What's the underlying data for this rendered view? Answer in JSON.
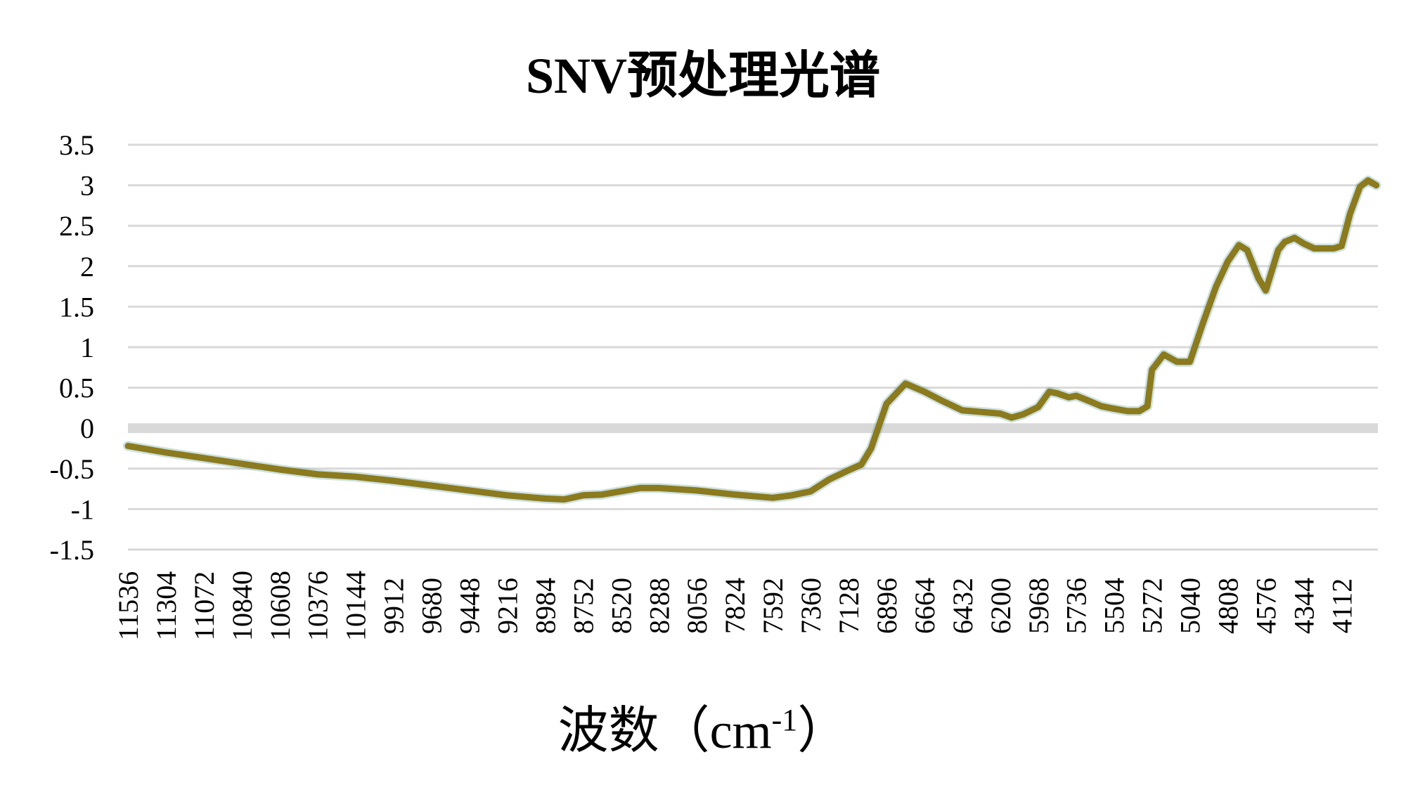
{
  "chart_data": {
    "type": "line",
    "title": "SNV预处理光谱",
    "xlabel_main": "波数（cm",
    "xlabel_sup": "-1",
    "xlabel_end": "）",
    "ylabel": "",
    "ylim": [
      -1.5,
      3.5
    ],
    "y_ticks": [
      "3.5",
      "3",
      "2.5",
      "2",
      "1.5",
      "1",
      "0.5",
      "0",
      "-0.5",
      "-1",
      "-1.5"
    ],
    "x_ticks": [
      "11536",
      "11304",
      "11072",
      "10840",
      "10608",
      "10376",
      "10144",
      "9912",
      "9680",
      "9448",
      "9216",
      "8984",
      "8752",
      "8520",
      "8288",
      "8056",
      "7824",
      "7592",
      "7360",
      "7128",
      "6896",
      "6664",
      "6432",
      "6200",
      "5968",
      "5736",
      "5504",
      "5272",
      "5040",
      "4808",
      "4576",
      "4344",
      "4112"
    ],
    "x_reversed": true,
    "xlim": [
      11536,
      3890
    ],
    "grid": true,
    "zero_line": true,
    "series": [
      {
        "color": "#8B7A1E",
        "x": [
          11536,
          11304,
          11072,
          10840,
          10608,
          10376,
          10144,
          9912,
          9680,
          9448,
          9216,
          8984,
          8868,
          8752,
          8636,
          8520,
          8404,
          8288,
          8056,
          7824,
          7592,
          7476,
          7360,
          7244,
          7170,
          7128,
          7050,
          6990,
          6896,
          6780,
          6664,
          6548,
          6432,
          6316,
          6200,
          6130,
          6060,
          5968,
          5900,
          5850,
          5780,
          5736,
          5650,
          5580,
          5504,
          5420,
          5350,
          5300,
          5272,
          5200,
          5120,
          5040,
          4960,
          4880,
          4808,
          4740,
          4690,
          4620,
          4576,
          4500,
          4460,
          4400,
          4344,
          4280,
          4230,
          4160,
          4112,
          4060,
          4000,
          3950,
          3900
        ],
        "y": [
          -0.22,
          -0.3,
          -0.37,
          -0.44,
          -0.51,
          -0.57,
          -0.6,
          -0.65,
          -0.71,
          -0.77,
          -0.83,
          -0.87,
          -0.88,
          -0.83,
          -0.82,
          -0.78,
          -0.74,
          -0.74,
          -0.77,
          -0.82,
          -0.86,
          -0.83,
          -0.78,
          -0.63,
          -0.56,
          -0.52,
          -0.45,
          -0.25,
          0.3,
          0.55,
          0.45,
          0.33,
          0.22,
          0.2,
          0.18,
          0.13,
          0.17,
          0.26,
          0.45,
          0.43,
          0.38,
          0.4,
          0.33,
          0.27,
          0.24,
          0.21,
          0.21,
          0.27,
          0.72,
          0.91,
          0.82,
          0.82,
          1.3,
          1.75,
          2.06,
          2.26,
          2.2,
          1.85,
          1.7,
          2.2,
          2.3,
          2.35,
          2.28,
          2.22,
          2.22,
          2.22,
          2.25,
          2.65,
          2.98,
          3.06,
          3.0
        ]
      }
    ]
  }
}
